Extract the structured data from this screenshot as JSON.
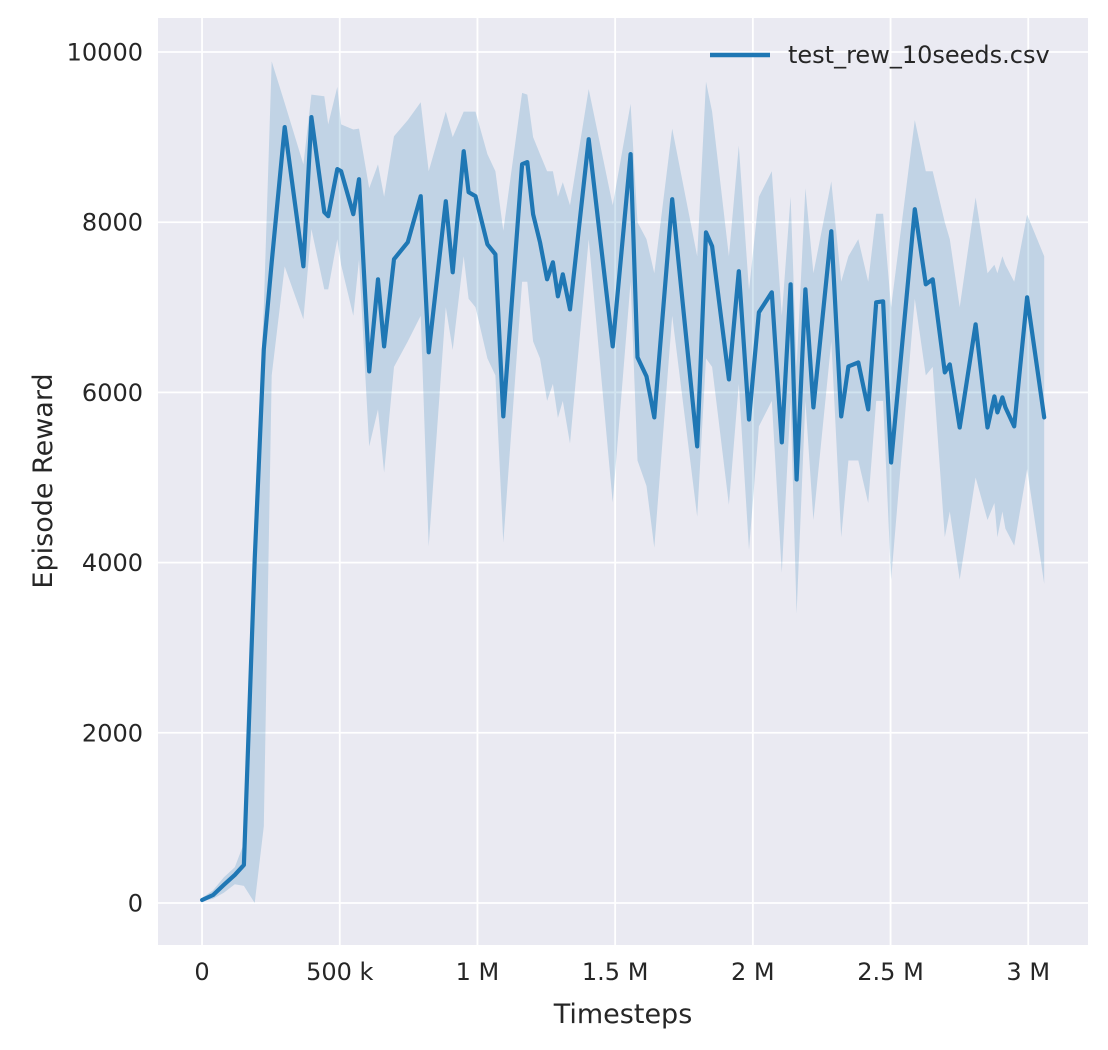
{
  "chart_data": {
    "type": "line",
    "title": "",
    "xlabel": "Timesteps",
    "ylabel": "Episode Reward",
    "grid": true,
    "legend_position": "upper right",
    "style": {
      "figure_background": "#ffffff",
      "axes_background": "#eaeaf2",
      "grid_color": "#ffffff",
      "line_color": "#1f77b4",
      "band_color": "rgba(31,119,180,0.2)",
      "text_color": "#262626"
    },
    "xlim": [
      -160000,
      3217000
    ],
    "ylim": [
      -494,
      10400
    ],
    "xticks": {
      "values": [
        0,
        500000,
        1000000,
        1500000,
        2000000,
        2500000,
        3000000
      ],
      "labels": [
        "0",
        "500 k",
        "1 M",
        "1.5 M",
        "2 M",
        "2.5 M",
        "3 M"
      ]
    },
    "yticks": {
      "values": [
        0,
        2000,
        4000,
        6000,
        8000,
        10000
      ],
      "labels": [
        "0",
        "2000",
        "4000",
        "6000",
        "8000",
        "10000"
      ]
    },
    "series": [
      {
        "name": "test_rew_10seeds.csv",
        "x": [
          0,
          40000,
          79000,
          119000,
          152000,
          191000,
          224000,
          253000,
          300000,
          368000,
          397000,
          444000,
          458000,
          491000,
          505000,
          549000,
          570000,
          607000,
          639000,
          661000,
          697000,
          747000,
          794000,
          823000,
          885000,
          910000,
          950000,
          968000,
          993000,
          1036000,
          1065000,
          1094000,
          1162000,
          1181000,
          1202000,
          1227000,
          1253000,
          1274000,
          1292000,
          1310000,
          1336000,
          1404000,
          1491000,
          1556000,
          1581000,
          1614000,
          1642000,
          1707000,
          1798000,
          1830000,
          1852000,
          1913000,
          1949000,
          1986000,
          2022000,
          2069000,
          2105000,
          2137000,
          2159000,
          2191000,
          2220000,
          2285000,
          2321000,
          2347000,
          2383000,
          2419000,
          2448000,
          2473000,
          2502000,
          2588000,
          2628000,
          2653000,
          2697000,
          2715000,
          2751000,
          2809000,
          2852000,
          2877000,
          2888000,
          2906000,
          2917000,
          2949000,
          2996000,
          3058000
        ],
        "mean": [
          35,
          94,
          212,
          330,
          447,
          4035,
          6506,
          7529,
          9118,
          7482,
          9235,
          8118,
          8071,
          8624,
          8600,
          8094,
          8506,
          6247,
          7329,
          6541,
          7565,
          7765,
          8306,
          6471,
          8247,
          7411,
          8835,
          8353,
          8306,
          7741,
          7623,
          5718,
          8682,
          8706,
          8094,
          7765,
          7329,
          7529,
          7129,
          7388,
          6976,
          8976,
          6541,
          8800,
          6412,
          6188,
          5706,
          8271,
          5365,
          7882,
          7718,
          6153,
          7424,
          5682,
          6941,
          7176,
          5412,
          7271,
          4976,
          7212,
          5824,
          7894,
          5718,
          6306,
          6353,
          5800,
          7059,
          7071,
          5176,
          8153,
          7270,
          7329,
          6235,
          6329,
          5588,
          6800,
          5588,
          5953,
          5765,
          5941,
          5824,
          5600,
          7118,
          5706
        ],
        "band_low": [
          20,
          50,
          120,
          220,
          200,
          0,
          900,
          6200,
          7480,
          6860,
          7920,
          7210,
          7210,
          7800,
          7500,
          6900,
          7560,
          5365,
          5800,
          5059,
          6300,
          6600,
          6900,
          4190,
          7000,
          6500,
          7600,
          7100,
          7000,
          6400,
          6200,
          4235,
          7300,
          7300,
          6600,
          6400,
          5900,
          6100,
          5700,
          5900,
          5400,
          7800,
          4706,
          7300,
          5200,
          4900,
          4176,
          6900,
          4541,
          6400,
          6300,
          4680,
          6100,
          4150,
          5600,
          5900,
          3880,
          5900,
          3400,
          5900,
          4500,
          6600,
          4300,
          5200,
          5200,
          4700,
          5900,
          5900,
          3800,
          7100,
          6200,
          6300,
          4300,
          4600,
          3800,
          5000,
          4500,
          4700,
          4300,
          4600,
          4400,
          4200,
          5100,
          3750
        ],
        "band_high": [
          60,
          150,
          300,
          420,
          700,
          4600,
          7000,
          9890,
          9400,
          8680,
          9500,
          9480,
          9150,
          9590,
          9150,
          9090,
          9100,
          8400,
          8680,
          8300,
          9010,
          9200,
          9410,
          8600,
          9300,
          9000,
          9300,
          9300,
          9300,
          8800,
          8600,
          7900,
          9520,
          9500,
          9000,
          8800,
          8600,
          8600,
          8300,
          8470,
          8200,
          9565,
          8200,
          9390,
          8000,
          7800,
          7400,
          9100,
          7600,
          9650,
          9300,
          7600,
          8900,
          7200,
          8300,
          8600,
          6900,
          8300,
          6300,
          8400,
          7400,
          8480,
          7300,
          7600,
          7800,
          7300,
          8100,
          8100,
          7000,
          9200,
          8600,
          8600,
          8000,
          7800,
          7000,
          8290,
          7400,
          7500,
          7400,
          7600,
          7500,
          7300,
          8090,
          7600
        ]
      }
    ]
  }
}
